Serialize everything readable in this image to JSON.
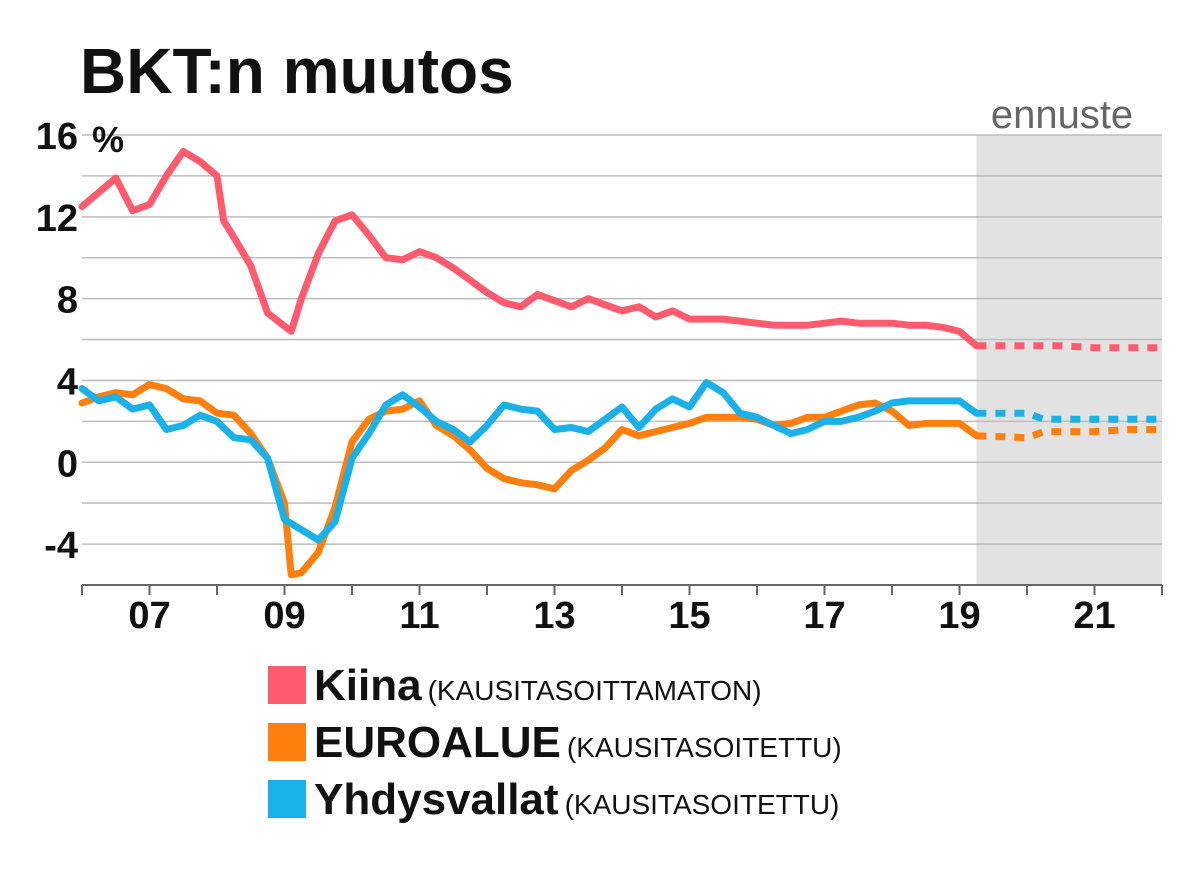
{
  "chart_data": {
    "type": "line",
    "title": "BKT:n muutos",
    "ylabel": "%",
    "ylim": [
      -6,
      16
    ],
    "xlim": [
      2006.0,
      2022.0
    ],
    "yticks": [
      -4,
      0,
      4,
      8,
      12,
      16
    ],
    "xticks": [
      2007,
      2009,
      2011,
      2013,
      2015,
      2017,
      2019,
      2021
    ],
    "xtick_labels": [
      "07",
      "09",
      "11",
      "13",
      "15",
      "17",
      "19",
      "21"
    ],
    "grid": true,
    "forecast": {
      "label": "ennuste",
      "from": 2019.25,
      "to": 2022.0
    },
    "legend": {
      "placement": "bottom"
    },
    "series": [
      {
        "key": "china",
        "name": "Kiina",
        "note": "(KAUSITASOITTAMATON)",
        "color": "#ff5a6e",
        "actual": [
          [
            2006.0,
            12.5
          ],
          [
            2006.25,
            13.2
          ],
          [
            2006.5,
            13.9
          ],
          [
            2006.75,
            12.3
          ],
          [
            2007.0,
            12.6
          ],
          [
            2007.25,
            14.0
          ],
          [
            2007.5,
            15.2
          ],
          [
            2007.75,
            14.7
          ],
          [
            2008.0,
            14.0
          ],
          [
            2008.1,
            11.8
          ],
          [
            2008.25,
            11.0
          ],
          [
            2008.5,
            9.6
          ],
          [
            2008.75,
            7.3
          ],
          [
            2009.1,
            6.4
          ],
          [
            2009.25,
            8.0
          ],
          [
            2009.5,
            10.2
          ],
          [
            2009.75,
            11.8
          ],
          [
            2010.0,
            12.1
          ],
          [
            2010.25,
            11.1
          ],
          [
            2010.5,
            10.0
          ],
          [
            2010.75,
            9.9
          ],
          [
            2011.0,
            10.3
          ],
          [
            2011.25,
            10.0
          ],
          [
            2011.5,
            9.5
          ],
          [
            2011.75,
            8.9
          ],
          [
            2012.0,
            8.3
          ],
          [
            2012.25,
            7.8
          ],
          [
            2012.5,
            7.6
          ],
          [
            2012.75,
            8.2
          ],
          [
            2013.0,
            7.9
          ],
          [
            2013.25,
            7.6
          ],
          [
            2013.5,
            8.0
          ],
          [
            2013.75,
            7.7
          ],
          [
            2014.0,
            7.4
          ],
          [
            2014.25,
            7.6
          ],
          [
            2014.5,
            7.1
          ],
          [
            2014.75,
            7.4
          ],
          [
            2015.0,
            7.0
          ],
          [
            2015.25,
            7.0
          ],
          [
            2015.5,
            7.0
          ],
          [
            2015.75,
            6.9
          ],
          [
            2016.0,
            6.8
          ],
          [
            2016.25,
            6.7
          ],
          [
            2016.5,
            6.7
          ],
          [
            2016.75,
            6.7
          ],
          [
            2017.0,
            6.8
          ],
          [
            2017.25,
            6.9
          ],
          [
            2017.5,
            6.8
          ],
          [
            2017.75,
            6.8
          ],
          [
            2018.0,
            6.8
          ],
          [
            2018.25,
            6.7
          ],
          [
            2018.5,
            6.7
          ],
          [
            2018.75,
            6.6
          ],
          [
            2019.0,
            6.4
          ],
          [
            2019.25,
            5.7
          ]
        ],
        "forecast": [
          [
            2019.25,
            5.7
          ],
          [
            2020.0,
            5.7
          ],
          [
            2020.5,
            5.7
          ],
          [
            2021.0,
            5.6
          ],
          [
            2022.0,
            5.6
          ]
        ]
      },
      {
        "key": "eurozone",
        "name": "EUROALUE",
        "note": "(KAUSITASOITETTU)",
        "color": "#ff7f0e",
        "actual": [
          [
            2006.0,
            2.9
          ],
          [
            2006.25,
            3.2
          ],
          [
            2006.5,
            3.4
          ],
          [
            2006.75,
            3.3
          ],
          [
            2007.0,
            3.8
          ],
          [
            2007.25,
            3.6
          ],
          [
            2007.5,
            3.1
          ],
          [
            2007.75,
            3.0
          ],
          [
            2008.0,
            2.4
          ],
          [
            2008.25,
            2.3
          ],
          [
            2008.5,
            1.4
          ],
          [
            2008.75,
            0.2
          ],
          [
            2009.0,
            -2.0
          ],
          [
            2009.1,
            -5.5
          ],
          [
            2009.25,
            -5.4
          ],
          [
            2009.5,
            -4.4
          ],
          [
            2009.75,
            -2.2
          ],
          [
            2010.0,
            1.0
          ],
          [
            2010.25,
            2.1
          ],
          [
            2010.5,
            2.5
          ],
          [
            2010.75,
            2.6
          ],
          [
            2011.0,
            3.0
          ],
          [
            2011.25,
            1.8
          ],
          [
            2011.5,
            1.3
          ],
          [
            2011.75,
            0.6
          ],
          [
            2012.0,
            -0.3
          ],
          [
            2012.25,
            -0.8
          ],
          [
            2012.5,
            -1.0
          ],
          [
            2012.75,
            -1.1
          ],
          [
            2013.0,
            -1.3
          ],
          [
            2013.25,
            -0.4
          ],
          [
            2013.5,
            0.1
          ],
          [
            2013.75,
            0.7
          ],
          [
            2014.0,
            1.6
          ],
          [
            2014.25,
            1.3
          ],
          [
            2014.5,
            1.5
          ],
          [
            2014.75,
            1.7
          ],
          [
            2015.0,
            1.9
          ],
          [
            2015.25,
            2.2
          ],
          [
            2015.5,
            2.2
          ],
          [
            2015.75,
            2.2
          ],
          [
            2016.0,
            2.1
          ],
          [
            2016.25,
            1.8
          ],
          [
            2016.5,
            1.9
          ],
          [
            2016.75,
            2.2
          ],
          [
            2017.0,
            2.2
          ],
          [
            2017.25,
            2.5
          ],
          [
            2017.5,
            2.8
          ],
          [
            2017.75,
            2.9
          ],
          [
            2018.0,
            2.5
          ],
          [
            2018.25,
            1.8
          ],
          [
            2018.5,
            1.9
          ],
          [
            2018.75,
            1.9
          ],
          [
            2019.0,
            1.9
          ],
          [
            2019.25,
            1.3
          ]
        ],
        "forecast": [
          [
            2019.25,
            1.3
          ],
          [
            2020.0,
            1.2
          ],
          [
            2020.25,
            1.5
          ],
          [
            2021.0,
            1.5
          ],
          [
            2021.5,
            1.6
          ],
          [
            2022.0,
            1.6
          ]
        ]
      },
      {
        "key": "usa",
        "name": "Yhdysvallat",
        "note": "(KAUSITASOITETTU)",
        "color": "#1ab0e8",
        "actual": [
          [
            2006.0,
            3.6
          ],
          [
            2006.25,
            3.0
          ],
          [
            2006.5,
            3.2
          ],
          [
            2006.75,
            2.6
          ],
          [
            2007.0,
            2.8
          ],
          [
            2007.25,
            1.6
          ],
          [
            2007.5,
            1.8
          ],
          [
            2007.75,
            2.3
          ],
          [
            2008.0,
            2.0
          ],
          [
            2008.25,
            1.2
          ],
          [
            2008.5,
            1.1
          ],
          [
            2008.75,
            0.2
          ],
          [
            2009.0,
            -2.8
          ],
          [
            2009.25,
            -3.3
          ],
          [
            2009.5,
            -3.8
          ],
          [
            2009.75,
            -2.9
          ],
          [
            2010.0,
            0.2
          ],
          [
            2010.25,
            1.4
          ],
          [
            2010.5,
            2.8
          ],
          [
            2010.75,
            3.3
          ],
          [
            2011.0,
            2.7
          ],
          [
            2011.25,
            2.0
          ],
          [
            2011.5,
            1.6
          ],
          [
            2011.75,
            1.0
          ],
          [
            2012.0,
            1.8
          ],
          [
            2012.25,
            2.8
          ],
          [
            2012.5,
            2.6
          ],
          [
            2012.75,
            2.5
          ],
          [
            2013.0,
            1.6
          ],
          [
            2013.25,
            1.7
          ],
          [
            2013.5,
            1.5
          ],
          [
            2013.75,
            2.1
          ],
          [
            2014.0,
            2.7
          ],
          [
            2014.25,
            1.7
          ],
          [
            2014.5,
            2.6
          ],
          [
            2014.75,
            3.1
          ],
          [
            2015.0,
            2.7
          ],
          [
            2015.25,
            3.9
          ],
          [
            2015.5,
            3.4
          ],
          [
            2015.75,
            2.4
          ],
          [
            2016.0,
            2.2
          ],
          [
            2016.25,
            1.8
          ],
          [
            2016.5,
            1.4
          ],
          [
            2016.75,
            1.6
          ],
          [
            2017.0,
            2.0
          ],
          [
            2017.25,
            2.0
          ],
          [
            2017.5,
            2.2
          ],
          [
            2017.75,
            2.5
          ],
          [
            2018.0,
            2.9
          ],
          [
            2018.25,
            3.0
          ],
          [
            2018.5,
            3.0
          ],
          [
            2018.75,
            3.0
          ],
          [
            2019.0,
            3.0
          ],
          [
            2019.25,
            2.4
          ]
        ],
        "forecast": [
          [
            2019.25,
            2.4
          ],
          [
            2020.0,
            2.4
          ],
          [
            2020.25,
            2.1
          ],
          [
            2021.0,
            2.1
          ],
          [
            2022.0,
            2.1
          ]
        ]
      }
    ]
  }
}
